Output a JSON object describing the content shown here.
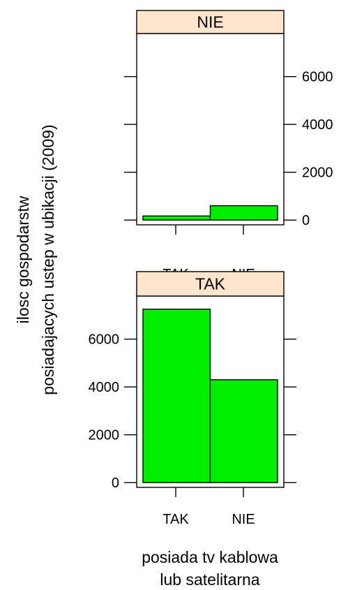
{
  "chart_data": {
    "type": "bar",
    "ylabel_lines": [
      "ilosc gospodarstw",
      "posiadajacych ustep w ubikacji (2009)"
    ],
    "xlabel_lines": [
      "posiada tv kablowa",
      "lub satelitarna"
    ],
    "categories": [
      "TAK",
      "NIE"
    ],
    "ylim": [
      -200,
      7800
    ],
    "yticks": [
      0,
      2000,
      4000,
      6000
    ],
    "grid": false,
    "panels": [
      {
        "strip": "NIE",
        "values": [
          170,
          600
        ],
        "y_axis_side": "right"
      },
      {
        "strip": "TAK",
        "values": [
          7250,
          4300
        ],
        "y_axis_side": "left"
      }
    ],
    "colors": {
      "bar_fill": "#00ee00",
      "strip_fill": "#ffe5cc",
      "outline": "#000000"
    }
  }
}
